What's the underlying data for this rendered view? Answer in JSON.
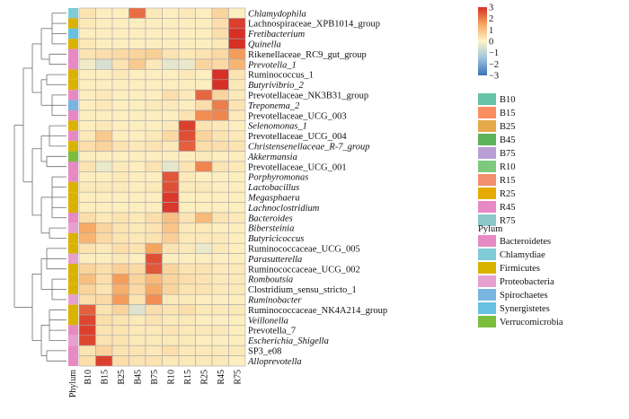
{
  "chart_data": {
    "type": "heatmap",
    "columns": [
      "B10",
      "B15",
      "B25",
      "B45",
      "B75",
      "R10",
      "R15",
      "R25",
      "R45",
      "R75"
    ],
    "annotation_label": "Phylum",
    "rows": [
      {
        "name": "Chlamydophila",
        "italic": true,
        "phylum": "Chlamydiae",
        "values": [
          0.3,
          0.1,
          0.1,
          2.2,
          0.2,
          0.1,
          0.2,
          0.1,
          0.6,
          0.1
        ]
      },
      {
        "name": "Lachnospiraceae_XPB1014_group",
        "italic": false,
        "phylum": "Firmicutes",
        "values": [
          0.2,
          0.1,
          0.1,
          0.1,
          0.1,
          0.1,
          0.1,
          0.1,
          0.4,
          2.8
        ]
      },
      {
        "name": "Fretibacterium",
        "italic": true,
        "phylum": "Synergistetes",
        "values": [
          0.1,
          0.1,
          0.1,
          0.1,
          0.1,
          0.1,
          0.1,
          0.1,
          0.4,
          3.0
        ]
      },
      {
        "name": "Quinella",
        "italic": true,
        "phylum": "Firmicutes",
        "values": [
          0.2,
          0.1,
          0.1,
          0.1,
          0.1,
          0.1,
          0.1,
          0.1,
          0.2,
          3.0
        ]
      },
      {
        "name": "Rikenellaceae_RC9_gut_group",
        "italic": false,
        "phylum": "Bacteroidetes",
        "values": [
          0.3,
          0.4,
          0.5,
          0.6,
          0.7,
          0.3,
          0.2,
          0.3,
          0.5,
          1.6
        ]
      },
      {
        "name": "Prevotella_1",
        "italic": true,
        "phylum": "Bacteroidetes",
        "values": [
          -0.2,
          -0.6,
          0.3,
          0.8,
          0.2,
          -0.4,
          -0.3,
          0.6,
          0.5,
          1.2
        ]
      },
      {
        "name": "Ruminococcus_1",
        "italic": false,
        "phylum": "Firmicutes",
        "values": [
          0.1,
          0.1,
          0.2,
          0.1,
          0.1,
          0.1,
          0.2,
          0.1,
          3.0,
          0.3
        ]
      },
      {
        "name": "Butyrivibrio_2",
        "italic": true,
        "phylum": "Firmicutes",
        "values": [
          0.1,
          0.1,
          0.1,
          0.1,
          0.1,
          0.1,
          0.1,
          0.1,
          3.0,
          0.2
        ]
      },
      {
        "name": "Prevotellaceae_NK3B31_group",
        "italic": false,
        "phylum": "Bacteroidetes",
        "values": [
          0.1,
          0.2,
          0.1,
          0.1,
          0.1,
          0.4,
          0.2,
          2.3,
          0.6,
          0.2
        ]
      },
      {
        "name": "Treponema_2",
        "italic": true,
        "phylum": "Spirochaetes",
        "values": [
          0.1,
          0.2,
          0.1,
          0.1,
          0.2,
          0.2,
          0.1,
          0.4,
          2.0,
          0.3
        ]
      },
      {
        "name": "Prevotellaceae_UCG_003",
        "italic": false,
        "phylum": "Bacteroidetes",
        "values": [
          0.1,
          0.1,
          0.1,
          0.1,
          0.1,
          0.1,
          0.3,
          1.8,
          1.9,
          0.2
        ]
      },
      {
        "name": "Selenomonas_1",
        "italic": true,
        "phylum": "Firmicutes",
        "values": [
          0.1,
          0.2,
          0.1,
          0.1,
          0.1,
          0.2,
          2.8,
          0.3,
          0.2,
          0.1
        ]
      },
      {
        "name": "Prevotellaceae_UCG_004",
        "italic": false,
        "phylum": "Bacteroidetes",
        "values": [
          0.2,
          0.8,
          0.1,
          0.1,
          0.2,
          0.5,
          2.6,
          0.6,
          0.3,
          0.2
        ]
      },
      {
        "name": "Christensenellaceae_R-7_group",
        "italic": true,
        "phylum": "Firmicutes",
        "values": [
          0.4,
          0.6,
          0.3,
          0.2,
          0.3,
          0.2,
          2.4,
          0.4,
          0.4,
          0.3
        ]
      },
      {
        "name": "Akkermansia",
        "italic": true,
        "phylum": "Verrucomicrobia",
        "values": [
          0.1,
          0.1,
          0.1,
          0.1,
          0.1,
          0.1,
          0.1,
          0.2,
          0.1,
          0.1
        ]
      },
      {
        "name": "Prevotellaceae_UCG_001",
        "italic": false,
        "phylum": "Bacteroidetes",
        "values": [
          0.3,
          -0.3,
          0.2,
          0.1,
          0.3,
          -0.4,
          0.3,
          1.9,
          0.3,
          0.2
        ]
      },
      {
        "name": "Porphyromonas",
        "italic": true,
        "phylum": "Bacteroidetes",
        "values": [
          0.1,
          0.1,
          0.2,
          0.1,
          0.1,
          2.5,
          0.2,
          0.1,
          0.1,
          0.1
        ]
      },
      {
        "name": "Lactobacillus",
        "italic": true,
        "phylum": "Firmicutes",
        "values": [
          0.2,
          0.2,
          0.2,
          0.1,
          0.2,
          2.6,
          0.2,
          0.2,
          0.1,
          0.1
        ]
      },
      {
        "name": "Megasphaera",
        "italic": true,
        "phylum": "Firmicutes",
        "values": [
          0.1,
          0.1,
          0.1,
          0.1,
          0.1,
          2.9,
          0.1,
          0.1,
          0.1,
          0.1
        ]
      },
      {
        "name": "Lachnoclostridium",
        "italic": true,
        "phylum": "Firmicutes",
        "values": [
          0.1,
          0.1,
          0.1,
          0.1,
          0.1,
          2.9,
          0.1,
          0.1,
          0.1,
          0.1
        ]
      },
      {
        "name": "Bacteroides",
        "italic": true,
        "phylum": "Bacteroidetes",
        "values": [
          0.4,
          0.2,
          0.3,
          0.2,
          0.4,
          1.0,
          0.3,
          1.1,
          0.3,
          0.2
        ]
      },
      {
        "name": "Bibersteinia",
        "italic": true,
        "phylum": "Proteobacteria",
        "values": [
          1.4,
          0.6,
          0.3,
          0.2,
          0.3,
          0.9,
          0.2,
          0.2,
          0.1,
          0.1
        ]
      },
      {
        "name": "Butyricicoccus",
        "italic": true,
        "phylum": "Firmicutes",
        "values": [
          1.2,
          0.5,
          0.3,
          0.2,
          0.3,
          0.7,
          0.2,
          0.2,
          0.2,
          0.1
        ]
      },
      {
        "name": "Ruminococcaceae_UCG_005",
        "italic": false,
        "phylum": "Firmicutes",
        "values": [
          0.3,
          0.2,
          0.4,
          0.3,
          1.5,
          0.3,
          0.2,
          -0.3,
          0.2,
          0.1
        ]
      },
      {
        "name": "Parasutterella",
        "italic": true,
        "phylum": "Proteobacteria",
        "values": [
          0.1,
          0.1,
          0.2,
          0.1,
          2.6,
          0.1,
          0.1,
          0.1,
          0.1,
          0.1
        ]
      },
      {
        "name": "Ruminococcaceae_UCG_002",
        "italic": false,
        "phylum": "Firmicutes",
        "values": [
          0.6,
          0.4,
          0.7,
          0.5,
          2.5,
          0.6,
          0.3,
          0.3,
          0.2,
          0.2
        ]
      },
      {
        "name": "Romboutsia",
        "italic": true,
        "phylum": "Firmicutes",
        "values": [
          1.0,
          0.4,
          1.6,
          0.6,
          1.1,
          0.6,
          0.4,
          0.3,
          0.2,
          0.2
        ]
      },
      {
        "name": "Clostridium_sensu_stricto_1",
        "italic": false,
        "phylum": "Firmicutes",
        "values": [
          0.6,
          0.3,
          1.3,
          0.5,
          1.4,
          0.6,
          0.3,
          0.3,
          0.2,
          0.2
        ]
      },
      {
        "name": "Ruminobacter",
        "italic": true,
        "phylum": "Proteobacteria",
        "values": [
          0.4,
          0.5,
          1.6,
          0.3,
          1.8,
          0.2,
          0.2,
          0.1,
          0.1,
          0.1
        ]
      },
      {
        "name": "Ruminococcaceae_NK4A214_group",
        "italic": false,
        "phylum": "Firmicutes",
        "values": [
          2.4,
          0.3,
          0.6,
          -0.5,
          0.4,
          0.3,
          0.4,
          0.2,
          0.2,
          0.2
        ]
      },
      {
        "name": "Veillonella",
        "italic": true,
        "phylum": "Firmicutes",
        "values": [
          2.7,
          0.4,
          0.3,
          0.2,
          0.3,
          0.2,
          0.2,
          0.1,
          0.1,
          0.1
        ]
      },
      {
        "name": "Prevotella_7",
        "italic": false,
        "phylum": "Bacteroidetes",
        "values": [
          2.8,
          0.3,
          0.3,
          0.2,
          0.2,
          0.3,
          0.2,
          0.2,
          0.2,
          0.1
        ]
      },
      {
        "name": "Escherichia_Shigella",
        "italic": true,
        "phylum": "Proteobacteria",
        "values": [
          2.7,
          0.3,
          0.3,
          0.2,
          0.2,
          0.2,
          0.2,
          0.1,
          0.1,
          0.1
        ]
      },
      {
        "name": "SP3_e08",
        "italic": false,
        "phylum": "Bacteroidetes",
        "values": [
          0.3,
          0.6,
          0.3,
          0.3,
          0.2,
          0.4,
          0.2,
          0.2,
          0.2,
          0.2
        ]
      },
      {
        "name": "Alloprevotella",
        "italic": true,
        "phylum": "Bacteroidetes",
        "values": [
          0.4,
          2.8,
          0.4,
          0.3,
          0.3,
          0.2,
          0.2,
          0.2,
          0.2,
          0.1
        ]
      }
    ],
    "color_scale": {
      "ticks": [
        3,
        2,
        1,
        0,
        -1,
        -2,
        -3
      ],
      "tick_labels": [
        "3",
        "2",
        "1",
        "0",
        "−1",
        "−2",
        "−3"
      ],
      "min": -3,
      "max": 3,
      "stops": [
        "#3a73b5",
        "#9ec2e0",
        "#fdf3c7",
        "#f6a55f",
        "#d73027"
      ]
    },
    "group_legend": {
      "items": [
        {
          "label": "B10",
          "color": "#66c2a5"
        },
        {
          "label": "B15",
          "color": "#fc8d62"
        },
        {
          "label": "B25",
          "color": "#e5a84b"
        },
        {
          "label": "B45",
          "color": "#5db35a"
        },
        {
          "label": "B75",
          "color": "#b99fd6"
        },
        {
          "label": "R10",
          "color": "#7fc97f"
        },
        {
          "label": "R15",
          "color": "#f28e6b"
        },
        {
          "label": "R25",
          "color": "#e6ab02"
        },
        {
          "label": "R45",
          "color": "#e78ac3"
        },
        {
          "label": "R75",
          "color": "#8cc7c9"
        }
      ]
    },
    "phylum_legend": {
      "title": "Pylum",
      "items": [
        {
          "label": "Bacteroidetes",
          "color": "#e78ac3"
        },
        {
          "label": "Chlamydiae",
          "color": "#7fcbd6"
        },
        {
          "label": "Firmicutes",
          "color": "#d9b300"
        },
        {
          "label": "Proteobacteria",
          "color": "#e5a0d0"
        },
        {
          "label": "Spirochaetes",
          "color": "#78b5e0"
        },
        {
          "label": "Synergistetes",
          "color": "#66c2e0"
        },
        {
          "label": "Verrucomicrobia",
          "color": "#7dbd3e"
        }
      ]
    }
  }
}
